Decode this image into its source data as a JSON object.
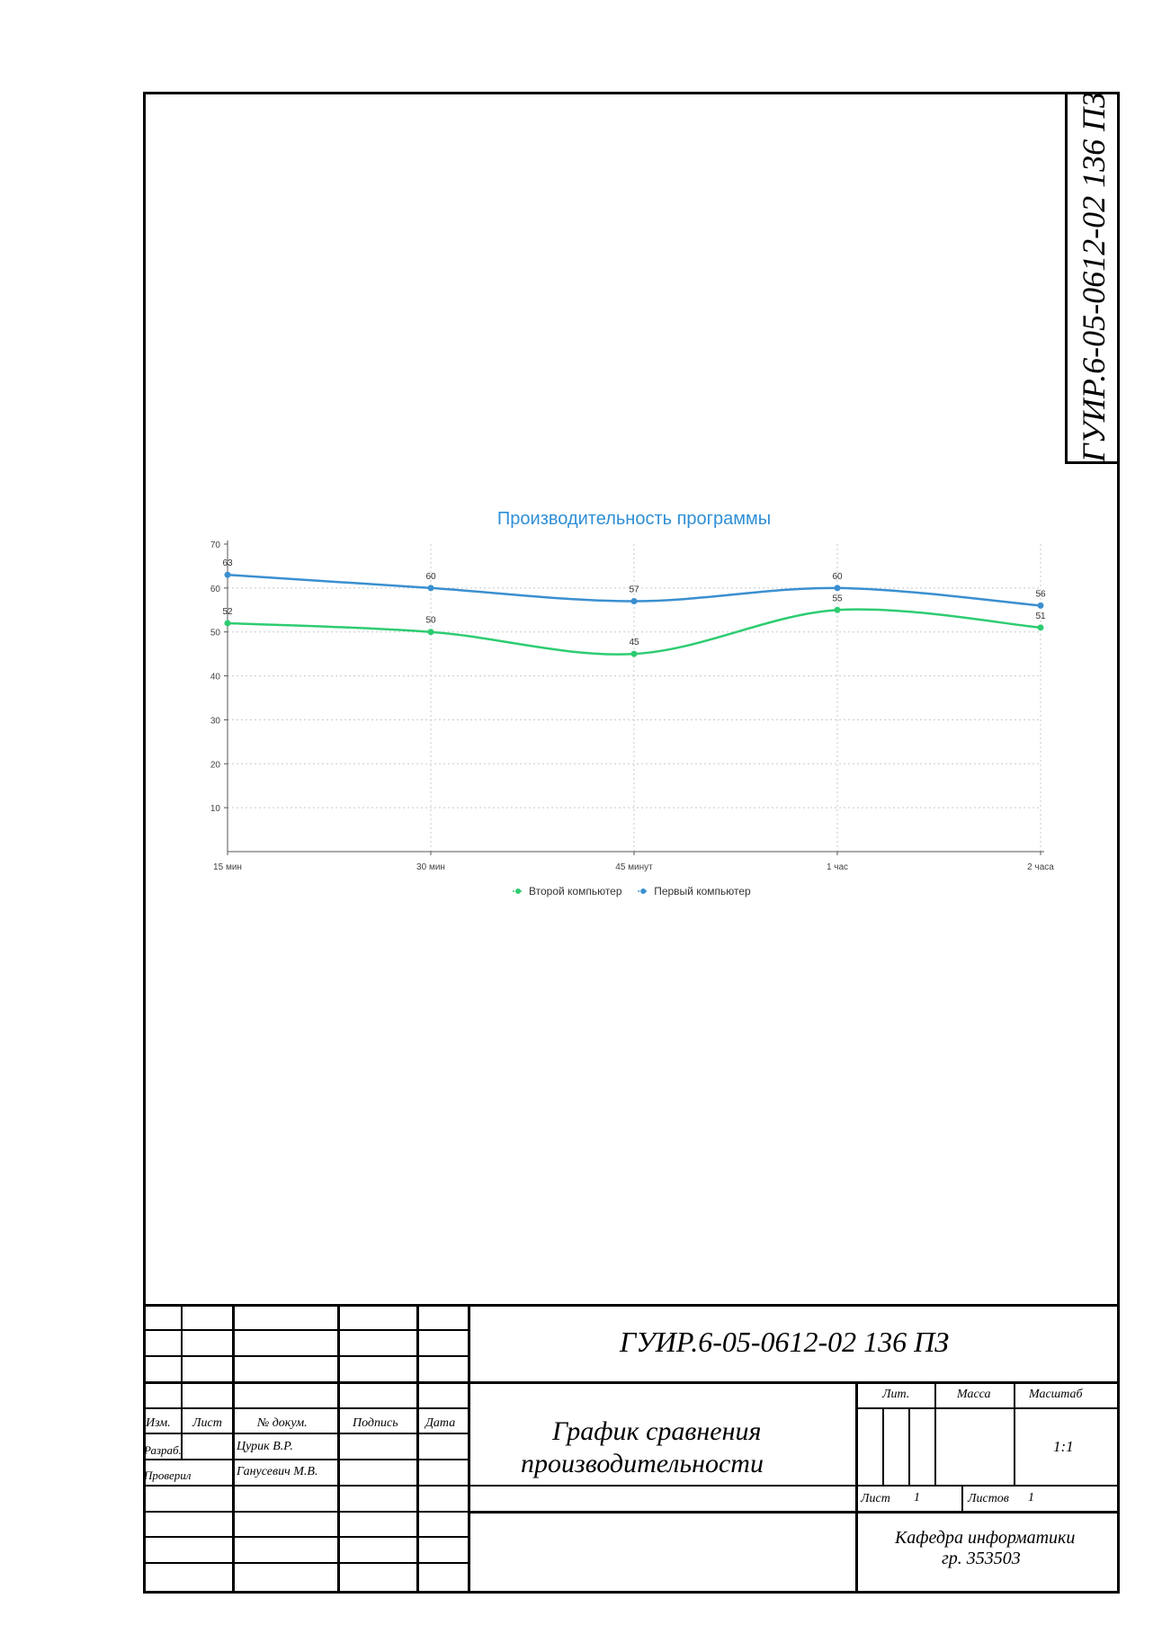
{
  "document_code": "ГУИР.6-05-0612-02 136 ПЗ",
  "chart_data": {
    "type": "line",
    "title": "Производительность программы",
    "categories": [
      "15 мин",
      "30 мин",
      "45 минут",
      "1 час",
      "2 часа"
    ],
    "yticks": [
      10,
      20,
      30,
      40,
      50,
      60,
      70
    ],
    "ylim": [
      0,
      70
    ],
    "grid": true,
    "legend_position": "bottom-center",
    "series": [
      {
        "name": "Второй компьютер",
        "values": [
          52,
          50,
          45,
          55,
          51
        ],
        "color": "#2ecc71"
      },
      {
        "name": "Первый компьютер",
        "values": [
          63,
          60,
          57,
          60,
          56
        ],
        "color": "#3a8fd0"
      }
    ],
    "title_color": "#2f8fd6"
  },
  "title_block": {
    "doc_code": "ГУИР.6-05-0612-02 136 ПЗ",
    "doc_title_line1": "График сравнения",
    "doc_title_line2": "производительности",
    "headers": {
      "izm": "Изм.",
      "list": "Лист",
      "doc_num": "№ докум.",
      "signature": "Подпись",
      "date": "Дата"
    },
    "rows": [
      {
        "role": "Разраб.",
        "name": "Цурик В.Р."
      },
      {
        "role": "Проверил",
        "name": "Ганусевич М.В."
      }
    ],
    "lit_label": "Лит.",
    "mass_label": "Масса",
    "scale_label": "Масштаб",
    "scale_value": "1:1",
    "sheet_label": "Лист",
    "sheet_value": "1",
    "sheets_label": "Листов",
    "sheets_value": "1",
    "organization_line1": "Кафедра информатики",
    "organization_line2": "гр. 353503"
  }
}
